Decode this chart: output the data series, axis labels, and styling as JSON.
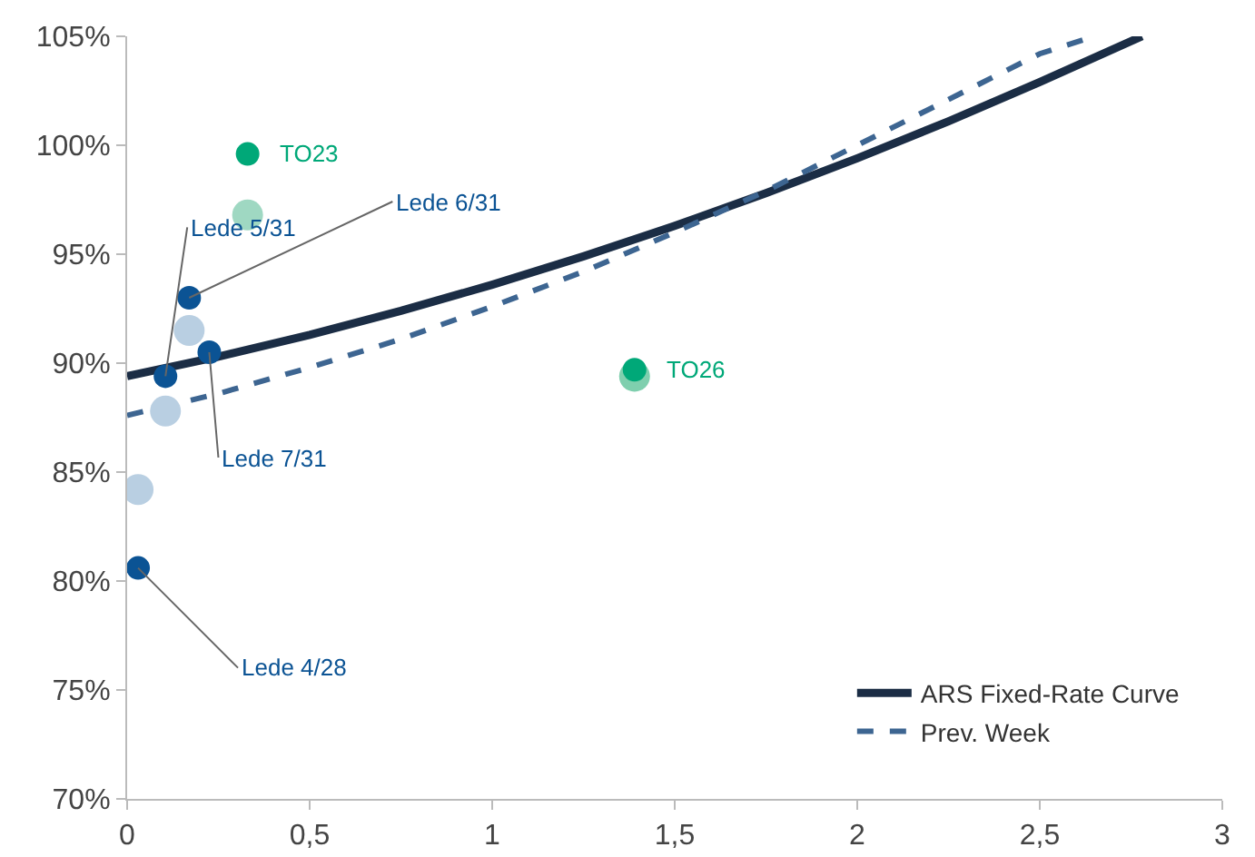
{
  "chart_data": {
    "type": "line",
    "xlim": [
      0,
      3
    ],
    "ylim": [
      70,
      105
    ],
    "xticks": [
      0,
      {
        "value": 0.5,
        "label": "0,5"
      },
      1,
      {
        "value": 1.5,
        "label": "1,5"
      },
      2,
      {
        "value": 2.5,
        "label": "2,5"
      },
      3
    ],
    "yticks": [
      {
        "value": 70,
        "label": "70%"
      },
      {
        "value": 75,
        "label": "75%"
      },
      {
        "value": 80,
        "label": "80%"
      },
      {
        "value": 85,
        "label": "85%"
      },
      {
        "value": 90,
        "label": "90%"
      },
      {
        "value": 95,
        "label": "95%"
      },
      {
        "value": 100,
        "label": "100%"
      },
      {
        "value": 105,
        "label": "105%"
      }
    ],
    "grid": false,
    "legend": "bottom right",
    "marker": "none",
    "series": [
      {
        "name": "ARS Fixed-Rate Curve",
        "color": "#1b2d45",
        "line_style": "solid",
        "x": [
          0,
          0.25,
          0.5,
          0.75,
          1,
          1.25,
          1.5,
          1.75,
          2,
          2.25,
          2.5,
          2.78
        ],
        "values": [
          89.4,
          90.3,
          91.3,
          92.4,
          93.6,
          94.9,
          96.3,
          97.8,
          99.4,
          101.1,
          102.9,
          105
        ]
      },
      {
        "name": "Prev. Week",
        "color": "#3d6591",
        "line_style": "dashed",
        "x": [
          0,
          0.25,
          0.5,
          0.75,
          1,
          1.25,
          1.5,
          1.75,
          2,
          2.25,
          2.5,
          2.65
        ],
        "values": [
          87.6,
          88.6,
          89.8,
          91.1,
          92.6,
          94.2,
          96.0,
          97.9,
          100.0,
          102.1,
          104.2,
          105
        ]
      },
      {
        "type": "scatter",
        "marker": "circle",
        "x": [
          0.03,
          0.105,
          0.17,
          0.33,
          1.39
        ],
        "colors": [
          "#b9cfe2",
          "#b9cfe2",
          "#b9cfe2",
          "#9fd8c2",
          "#7fcfae"
        ],
        "values": [
          84.2,
          87.8,
          91.5,
          96.8,
          89.4
        ]
      },
      {
        "type": "scatter",
        "marker": "circle",
        "x": [
          0.03,
          0.105,
          0.17,
          0.225,
          0.33,
          1.39
        ],
        "colors": [
          "#0b5394",
          "#0b5394",
          "#0b5394",
          "#0b5394",
          "#00a878",
          "#00a878"
        ],
        "values": [
          80.6,
          89.4,
          93.0,
          90.5,
          99.6,
          89.7
        ]
      }
    ],
    "annotations": [
      {
        "text": "Lede 4/28",
        "x": 0.03,
        "y": 80.6
      },
      {
        "text": "Lede 5/31",
        "x": 0.105,
        "y": 89.4
      },
      {
        "text": "Lede 6/31",
        "x": 0.17,
        "y": 93.0
      },
      {
        "text": "Lede 7/31",
        "x": 0.225,
        "y": 90.5
      },
      {
        "text": "TO23",
        "x": 0.33,
        "y": 99.6
      },
      {
        "text": "TO26",
        "x": 1.39,
        "y": 89.7
      }
    ]
  }
}
